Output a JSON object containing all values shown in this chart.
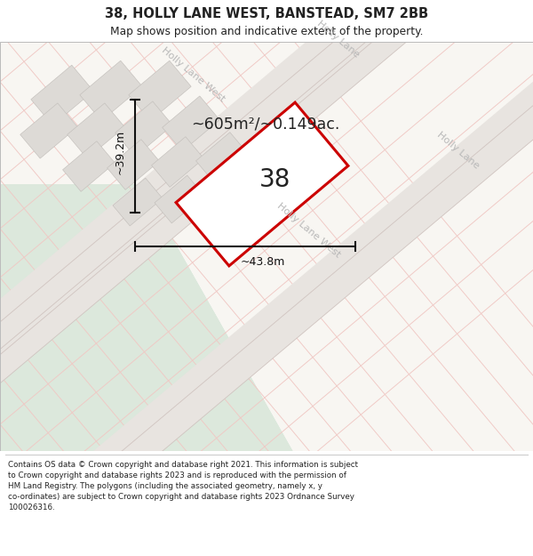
{
  "title": "38, HOLLY LANE WEST, BANSTEAD, SM7 2BB",
  "subtitle": "Map shows position and indicative extent of the property.",
  "footer_text": "Contains OS data © Crown copyright and database right 2021. This information is subject\nto Crown copyright and database rights 2023 and is reproduced with the permission of\nHM Land Registry. The polygons (including the associated geometry, namely x, y\nco-ordinates) are subject to Crown copyright and database rights 2023 Ordnance Survey\n100026316.",
  "area_label": "~605m²/~0.149ac.",
  "width_label": "~43.8m",
  "height_label": "~39.2m",
  "property_number": "38",
  "map_bg": "#f8f6f2",
  "green_color_light": "#dce8dc",
  "plot_fill": "#ffffff",
  "plot_edge": "#cc0000",
  "grid_line_color": "#f0c8c4",
  "road_fill": "#e8e4e0",
  "road_border": "#d0c4c0",
  "building_color": "#dddad6",
  "text_color": "#222222",
  "road_label_color": "#b8b8b8",
  "dim_color": "#111111"
}
